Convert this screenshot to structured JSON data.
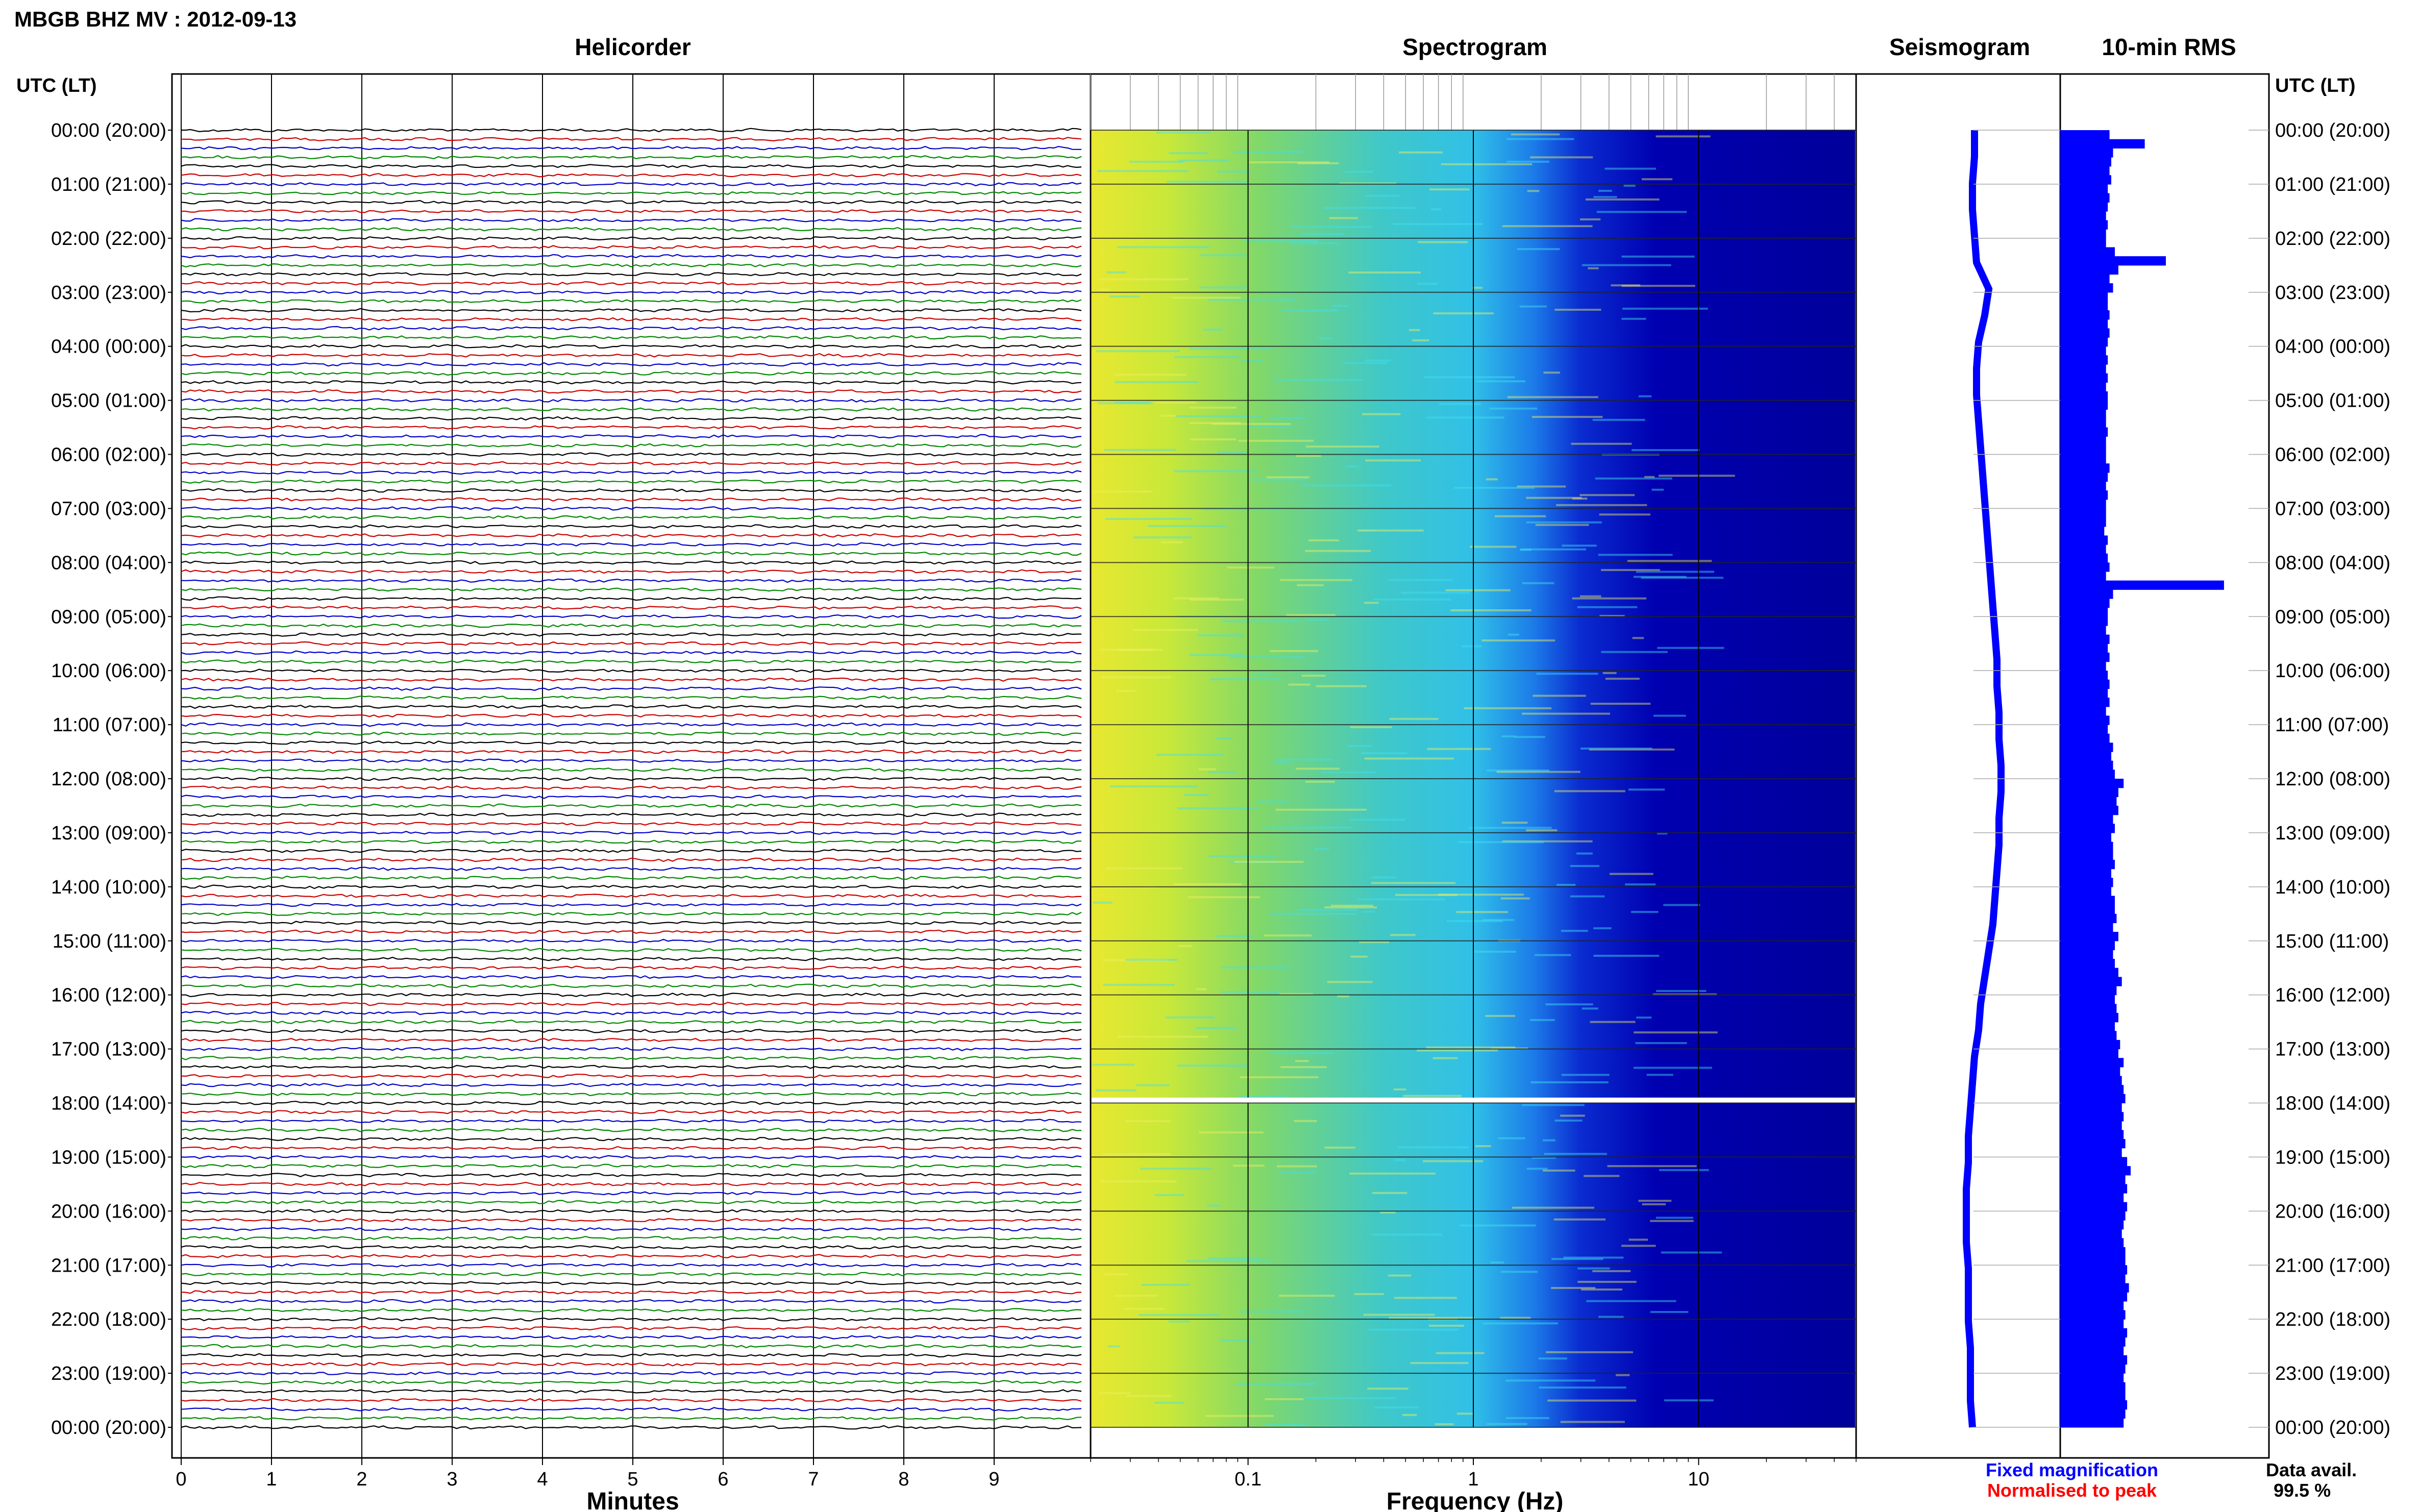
{
  "header": {
    "title": "MBGB BHZ MV : 2012-09-13",
    "utc_label": "UTC (LT)"
  },
  "panels": {
    "helicorder": "Helicorder",
    "spectrogram": "Spectrogram",
    "seismogram": "Seismogram",
    "rms": "10-min RMS"
  },
  "axes": {
    "minutes_label": "Minutes",
    "frequency_label": "Frequency (Hz)"
  },
  "legend": {
    "fixed": "Fixed magnification",
    "normalised": "Normalised to peak",
    "fixed_color": "#0000ff",
    "normalised_color": "#ff0000"
  },
  "data_avail": {
    "label": "Data avail.",
    "value": "99.5 %"
  },
  "colors": {
    "trace_cycle": [
      "#000000",
      "#cc0000",
      "#0000cc",
      "#008800"
    ],
    "rms_bar": "#0000ff",
    "spectrogram_low": "#e8e830",
    "spectrogram_mid": "#30c8e0",
    "spectrogram_high": "#0000a0"
  },
  "chart_data": {
    "type": "helicorder",
    "time_labels": [
      "00:00 (20:00)",
      "01:00 (21:00)",
      "02:00 (22:00)",
      "03:00 (23:00)",
      "04:00 (00:00)",
      "05:00 (01:00)",
      "06:00 (02:00)",
      "07:00 (03:00)",
      "08:00 (04:00)",
      "09:00 (05:00)",
      "10:00 (06:00)",
      "11:00 (07:00)",
      "12:00 (08:00)",
      "13:00 (09:00)",
      "14:00 (10:00)",
      "15:00 (11:00)",
      "16:00 (12:00)",
      "17:00 (13:00)",
      "18:00 (14:00)",
      "19:00 (15:00)",
      "20:00 (16:00)",
      "21:00 (17:00)",
      "22:00 (18:00)",
      "23:00 (19:00)",
      "00:00 (20:00)"
    ],
    "minutes_ticks": [
      "0",
      "1",
      "2",
      "3",
      "4",
      "5",
      "6",
      "7",
      "8",
      "9"
    ],
    "frequency_ticks": [
      "0.1",
      "1",
      "10"
    ],
    "frequency_range_hz": [
      0.02,
      50
    ],
    "rms_10min": [
      0.28,
      0.48,
      0.3,
      0.29,
      0.28,
      0.29,
      0.27,
      0.28,
      0.27,
      0.26,
      0.27,
      0.26,
      0.26,
      0.31,
      0.6,
      0.33,
      0.28,
      0.3,
      0.27,
      0.27,
      0.28,
      0.27,
      0.28,
      0.27,
      0.26,
      0.27,
      0.26,
      0.27,
      0.26,
      0.27,
      0.27,
      0.26,
      0.26,
      0.27,
      0.26,
      0.26,
      0.26,
      0.28,
      0.27,
      0.26,
      0.27,
      0.26,
      0.26,
      0.26,
      0.25,
      0.27,
      0.26,
      0.27,
      0.28,
      0.26,
      0.93,
      0.3,
      0.28,
      0.27,
      0.27,
      0.26,
      0.28,
      0.27,
      0.28,
      0.26,
      0.27,
      0.28,
      0.27,
      0.28,
      0.26,
      0.28,
      0.27,
      0.28,
      0.3,
      0.29,
      0.3,
      0.31,
      0.36,
      0.33,
      0.32,
      0.33,
      0.3,
      0.31,
      0.29,
      0.3,
      0.3,
      0.31,
      0.29,
      0.3,
      0.29,
      0.31,
      0.31,
      0.32,
      0.3,
      0.33,
      0.31,
      0.3,
      0.31,
      0.33,
      0.35,
      0.32,
      0.31,
      0.32,
      0.33,
      0.31,
      0.32,
      0.34,
      0.33,
      0.36,
      0.34,
      0.35,
      0.36,
      0.37,
      0.35,
      0.36,
      0.35,
      0.36,
      0.37,
      0.35,
      0.38,
      0.4,
      0.37,
      0.38,
      0.36,
      0.38,
      0.37,
      0.36,
      0.35,
      0.36,
      0.37,
      0.37,
      0.38,
      0.37,
      0.39,
      0.38,
      0.36,
      0.37,
      0.36,
      0.38,
      0.37,
      0.36,
      0.38,
      0.37,
      0.36,
      0.37,
      0.37,
      0.38,
      0.37,
      0.36
    ],
    "seismogram_offset": [
      0.43,
      0.43,
      0.42,
      0.42,
      0.43,
      0.44,
      0.5,
      0.48,
      0.45,
      0.44,
      0.44,
      0.45,
      0.46,
      0.47,
      0.48,
      0.49,
      0.5,
      0.51,
      0.52,
      0.53,
      0.54,
      0.54,
      0.55,
      0.55,
      0.56,
      0.56,
      0.55,
      0.55,
      0.54,
      0.53,
      0.52,
      0.5,
      0.48,
      0.46,
      0.45,
      0.43,
      0.42,
      0.41,
      0.4,
      0.4,
      0.39,
      0.39,
      0.39,
      0.4,
      0.4,
      0.4,
      0.41,
      0.41,
      0.41,
      0.42
    ]
  }
}
